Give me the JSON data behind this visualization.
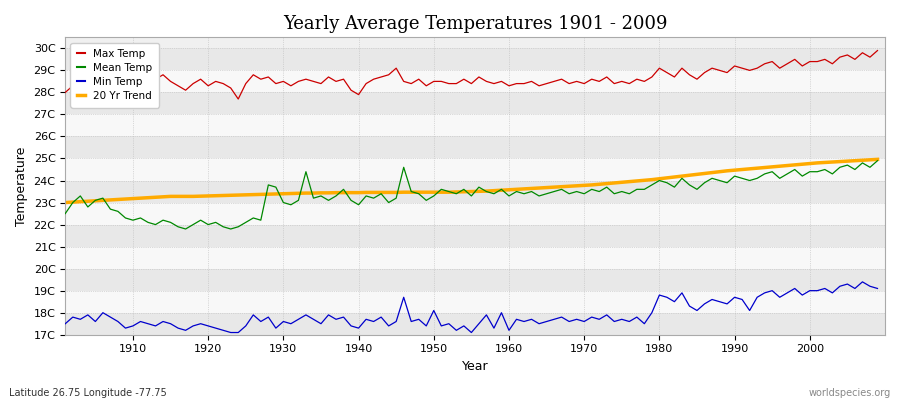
{
  "title": "Yearly Average Temperatures 1901 - 2009",
  "xlabel": "Year",
  "ylabel": "Temperature",
  "lat_lon_label": "Latitude 26.75 Longitude -77.75",
  "credit_label": "worldspecies.org",
  "years": [
    1901,
    1902,
    1903,
    1904,
    1905,
    1906,
    1907,
    1908,
    1909,
    1910,
    1911,
    1912,
    1913,
    1914,
    1915,
    1916,
    1917,
    1918,
    1919,
    1920,
    1921,
    1922,
    1923,
    1924,
    1925,
    1926,
    1927,
    1928,
    1929,
    1930,
    1931,
    1932,
    1933,
    1934,
    1935,
    1936,
    1937,
    1938,
    1939,
    1940,
    1941,
    1942,
    1943,
    1944,
    1945,
    1946,
    1947,
    1948,
    1949,
    1950,
    1951,
    1952,
    1953,
    1954,
    1955,
    1956,
    1957,
    1958,
    1959,
    1960,
    1961,
    1962,
    1963,
    1964,
    1965,
    1966,
    1967,
    1968,
    1969,
    1970,
    1971,
    1972,
    1973,
    1974,
    1975,
    1976,
    1977,
    1978,
    1979,
    1980,
    1981,
    1982,
    1983,
    1984,
    1985,
    1986,
    1987,
    1988,
    1989,
    1990,
    1991,
    1992,
    1993,
    1994,
    1995,
    1996,
    1997,
    1998,
    1999,
    2000,
    2001,
    2002,
    2003,
    2004,
    2005,
    2006,
    2007,
    2008,
    2009
  ],
  "max_temp": [
    28.0,
    28.3,
    28.5,
    28.6,
    28.6,
    28.7,
    28.4,
    28.2,
    28.1,
    28.0,
    28.3,
    28.5,
    28.6,
    28.8,
    28.5,
    28.3,
    28.1,
    28.4,
    28.6,
    28.3,
    28.5,
    28.4,
    28.2,
    27.7,
    28.4,
    28.8,
    28.6,
    28.7,
    28.4,
    28.5,
    28.3,
    28.5,
    28.6,
    28.5,
    28.4,
    28.7,
    28.5,
    28.6,
    28.1,
    27.9,
    28.4,
    28.6,
    28.7,
    28.8,
    29.1,
    28.5,
    28.4,
    28.6,
    28.3,
    28.5,
    28.5,
    28.4,
    28.4,
    28.6,
    28.4,
    28.7,
    28.5,
    28.4,
    28.5,
    28.3,
    28.4,
    28.4,
    28.5,
    28.3,
    28.4,
    28.5,
    28.6,
    28.4,
    28.5,
    28.4,
    28.6,
    28.5,
    28.7,
    28.4,
    28.5,
    28.4,
    28.6,
    28.5,
    28.7,
    29.1,
    28.9,
    28.7,
    29.1,
    28.8,
    28.6,
    28.9,
    29.1,
    29.0,
    28.9,
    29.2,
    29.1,
    29.0,
    29.1,
    29.3,
    29.4,
    29.1,
    29.3,
    29.5,
    29.2,
    29.4,
    29.4,
    29.5,
    29.3,
    29.6,
    29.7,
    29.5,
    29.8,
    29.6,
    29.9
  ],
  "mean_temp": [
    22.5,
    23.0,
    23.3,
    22.8,
    23.1,
    23.2,
    22.7,
    22.6,
    22.3,
    22.2,
    22.3,
    22.1,
    22.0,
    22.2,
    22.1,
    21.9,
    21.8,
    22.0,
    22.2,
    22.0,
    22.1,
    21.9,
    21.8,
    21.9,
    22.1,
    22.3,
    22.2,
    23.8,
    23.7,
    23.0,
    22.9,
    23.1,
    24.4,
    23.2,
    23.3,
    23.1,
    23.3,
    23.6,
    23.1,
    22.9,
    23.3,
    23.2,
    23.4,
    23.0,
    23.2,
    24.6,
    23.5,
    23.4,
    23.1,
    23.3,
    23.6,
    23.5,
    23.4,
    23.6,
    23.3,
    23.7,
    23.5,
    23.4,
    23.6,
    23.3,
    23.5,
    23.4,
    23.5,
    23.3,
    23.4,
    23.5,
    23.6,
    23.4,
    23.5,
    23.4,
    23.6,
    23.5,
    23.7,
    23.4,
    23.5,
    23.4,
    23.6,
    23.6,
    23.8,
    24.0,
    23.9,
    23.7,
    24.1,
    23.8,
    23.6,
    23.9,
    24.1,
    24.0,
    23.9,
    24.2,
    24.1,
    24.0,
    24.1,
    24.3,
    24.4,
    24.1,
    24.3,
    24.5,
    24.2,
    24.4,
    24.4,
    24.5,
    24.3,
    24.6,
    24.7,
    24.5,
    24.8,
    24.6,
    24.9
  ],
  "min_temp": [
    17.5,
    17.8,
    17.7,
    17.9,
    17.6,
    18.0,
    17.8,
    17.6,
    17.3,
    17.4,
    17.6,
    17.5,
    17.4,
    17.6,
    17.5,
    17.3,
    17.2,
    17.4,
    17.5,
    17.4,
    17.3,
    17.2,
    17.1,
    17.1,
    17.4,
    17.9,
    17.6,
    17.8,
    17.3,
    17.6,
    17.5,
    17.7,
    17.9,
    17.7,
    17.5,
    17.9,
    17.7,
    17.8,
    17.4,
    17.3,
    17.7,
    17.6,
    17.8,
    17.4,
    17.6,
    18.7,
    17.6,
    17.7,
    17.4,
    18.1,
    17.4,
    17.5,
    17.2,
    17.4,
    17.1,
    17.5,
    17.9,
    17.3,
    18.0,
    17.2,
    17.7,
    17.6,
    17.7,
    17.5,
    17.6,
    17.7,
    17.8,
    17.6,
    17.7,
    17.6,
    17.8,
    17.7,
    17.9,
    17.6,
    17.7,
    17.6,
    17.8,
    17.5,
    18.0,
    18.8,
    18.7,
    18.5,
    18.9,
    18.3,
    18.1,
    18.4,
    18.6,
    18.5,
    18.4,
    18.7,
    18.6,
    18.1,
    18.7,
    18.9,
    19.0,
    18.7,
    18.9,
    19.1,
    18.8,
    19.0,
    19.0,
    19.1,
    18.9,
    19.2,
    19.3,
    19.1,
    19.4,
    19.2,
    19.1
  ],
  "trend": [
    23.0,
    23.02,
    23.04,
    23.06,
    23.08,
    23.1,
    23.12,
    23.14,
    23.16,
    23.18,
    23.2,
    23.22,
    23.24,
    23.26,
    23.28,
    23.28,
    23.28,
    23.28,
    23.29,
    23.3,
    23.31,
    23.32,
    23.33,
    23.34,
    23.35,
    23.36,
    23.37,
    23.38,
    23.39,
    23.4,
    23.41,
    23.42,
    23.43,
    23.43,
    23.44,
    23.44,
    23.45,
    23.45,
    23.45,
    23.45,
    23.46,
    23.46,
    23.46,
    23.46,
    23.46,
    23.47,
    23.47,
    23.47,
    23.47,
    23.47,
    23.47,
    23.47,
    23.48,
    23.49,
    23.5,
    23.51,
    23.52,
    23.54,
    23.56,
    23.58,
    23.6,
    23.62,
    23.64,
    23.66,
    23.68,
    23.7,
    23.72,
    23.74,
    23.76,
    23.78,
    23.8,
    23.83,
    23.86,
    23.89,
    23.92,
    23.95,
    23.98,
    24.01,
    24.04,
    24.08,
    24.12,
    24.16,
    24.2,
    24.24,
    24.28,
    24.32,
    24.36,
    24.4,
    24.44,
    24.47,
    24.5,
    24.53,
    24.56,
    24.59,
    24.62,
    24.65,
    24.68,
    24.71,
    24.74,
    24.77,
    24.8,
    24.82,
    24.84,
    24.86,
    24.88,
    24.9,
    24.92,
    24.94,
    24.96
  ],
  "max_color": "#cc0000",
  "mean_color": "#008800",
  "min_color": "#0000cc",
  "trend_color": "#ffaa00",
  "plot_bg_color": "#f0f0f0",
  "band_color_light": "#e8e8e8",
  "band_color_dark": "#f8f8f8",
  "ylim": [
    17.0,
    30.5
  ],
  "yticks": [
    17,
    18,
    19,
    20,
    21,
    22,
    23,
    24,
    25,
    26,
    27,
    28,
    29,
    30
  ],
  "xlim": [
    1901,
    2010
  ],
  "xticks": [
    1910,
    1920,
    1930,
    1940,
    1950,
    1960,
    1970,
    1980,
    1990,
    2000
  ]
}
